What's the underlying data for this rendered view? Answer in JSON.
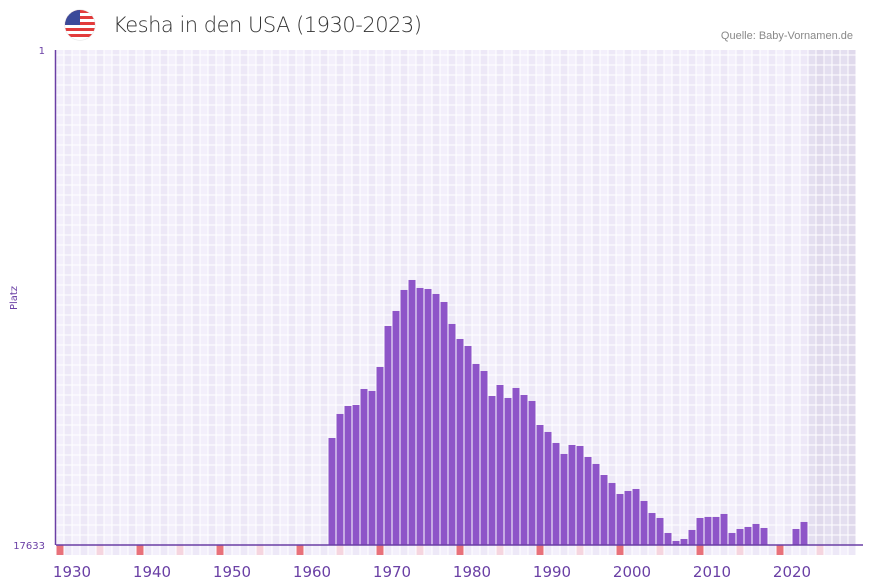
{
  "header": {
    "title": "Kesha in den USA (1930-2023)",
    "source": "Quelle: Baby-Vornamen.de",
    "flag_icon": "usa-flag-icon"
  },
  "colors": {
    "bar": "#8e55c8",
    "axis": "#6a3fa5",
    "marker_decade": "#e8717a",
    "marker_half": "#f5d5df",
    "future_shade": "#e2dcee"
  },
  "chart_data": {
    "type": "bar",
    "title": "Kesha in den USA (1930-2023)",
    "ylabel": "Platz",
    "ylim": [
      17633,
      1
    ],
    "y_tick_labels": [
      "1",
      "17633"
    ],
    "xlim": [
      1928,
      2028
    ],
    "x_tick_labels": [
      "1930",
      "1940",
      "1950",
      "1960",
      "1970",
      "1980",
      "1990",
      "2000",
      "2010",
      "2020"
    ],
    "future_from": 2022,
    "x": [
      1962,
      1963,
      1964,
      1965,
      1966,
      1967,
      1968,
      1969,
      1970,
      1971,
      1972,
      1973,
      1974,
      1975,
      1976,
      1977,
      1978,
      1979,
      1980,
      1981,
      1982,
      1983,
      1984,
      1985,
      1986,
      1987,
      1988,
      1989,
      1990,
      1991,
      1992,
      1993,
      1994,
      1995,
      1996,
      1997,
      1998,
      1999,
      2000,
      2001,
      2002,
      2003,
      2004,
      2005,
      2006,
      2007,
      2008,
      2009,
      2010,
      2011,
      2012,
      2013,
      2014,
      2015,
      2016,
      2020,
      2021
    ],
    "values": [
      13822,
      12966,
      12681,
      12646,
      12076,
      12147,
      11292,
      9832,
      9297,
      8549,
      8193,
      8478,
      8514,
      8692,
      8977,
      9760,
      10295,
      10544,
      11185,
      11435,
      12325,
      11933,
      12396,
      12040,
      12289,
      12503,
      13358,
      13607,
      13999,
      14391,
      14070,
      14106,
      14498,
      14747,
      15139,
      15424,
      15816,
      15709,
      15638,
      16065,
      16493,
      16671,
      17205,
      17490,
      17419,
      17098,
      16671,
      16635,
      16635,
      16528,
      17205,
      17063,
      16991,
      16884,
      17027,
      17063,
      16813
    ]
  }
}
